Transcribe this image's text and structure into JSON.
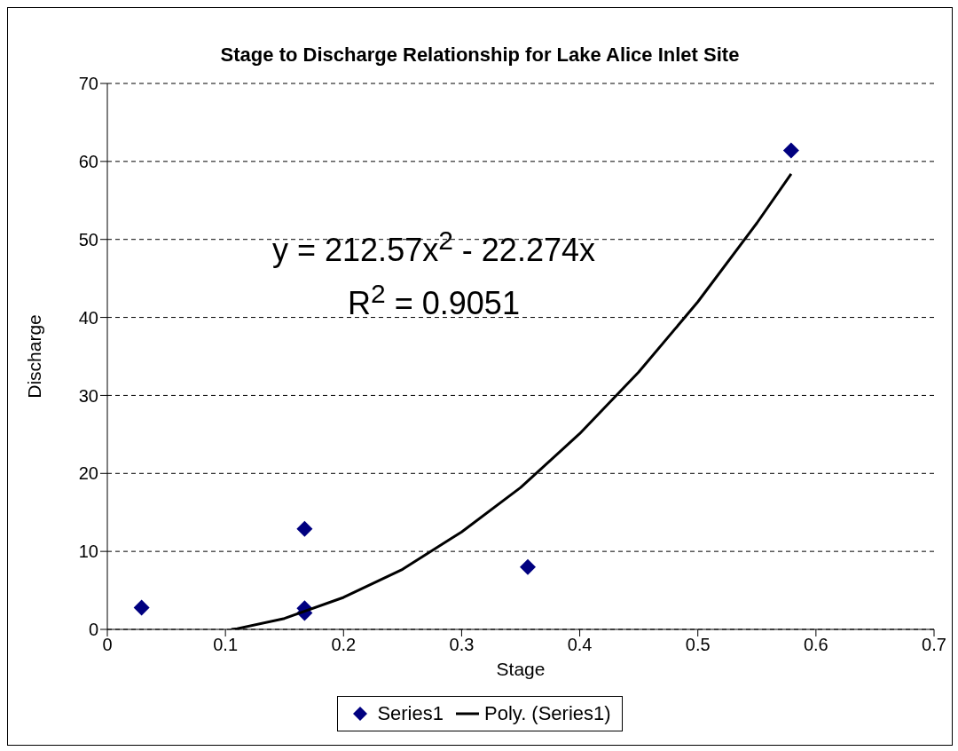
{
  "chart_data": {
    "type": "scatter",
    "title": "Stage to Discharge Relationship for Lake Alice Inlet Site",
    "xlabel": "Stage",
    "ylabel": "Discharge",
    "annotations": [
      "y = 212.57x$^{2}$ - 22.274x",
      "R$^{2}$ = 0.9051"
    ],
    "x": [
      0.029,
      0.167,
      0.167,
      0.167,
      0.356,
      0.579
    ],
    "series": [
      {
        "name": "Series1",
        "color": "#000080",
        "marker": "diamond",
        "values": [
          2.8,
          12.9,
          2.7,
          2.1,
          8.0,
          61.4
        ]
      },
      {
        "name": "Poly. (Series1)",
        "type": "line",
        "color": "#000000",
        "marker": "none",
        "line_style": "solid",
        "x": [
          0.105,
          0.11,
          0.15,
          0.2,
          0.25,
          0.3,
          0.35,
          0.4,
          0.45,
          0.5,
          0.55,
          0.579
        ],
        "values": [
          0,
          0.1,
          1.4,
          4.1,
          7.7,
          12.5,
          18.2,
          25.1,
          33.0,
          42.0,
          52.1,
          58.4
        ]
      }
    ],
    "xlim": [
      0,
      0.7
    ],
    "xticks": [
      0,
      0.1,
      0.2,
      0.3,
      0.4,
      0.5,
      0.6,
      0.7
    ],
    "ylim": [
      0,
      70
    ],
    "yticks": [
      0,
      10,
      20,
      30,
      40,
      50,
      60,
      70
    ],
    "grid": "y",
    "legend": "bottom"
  }
}
